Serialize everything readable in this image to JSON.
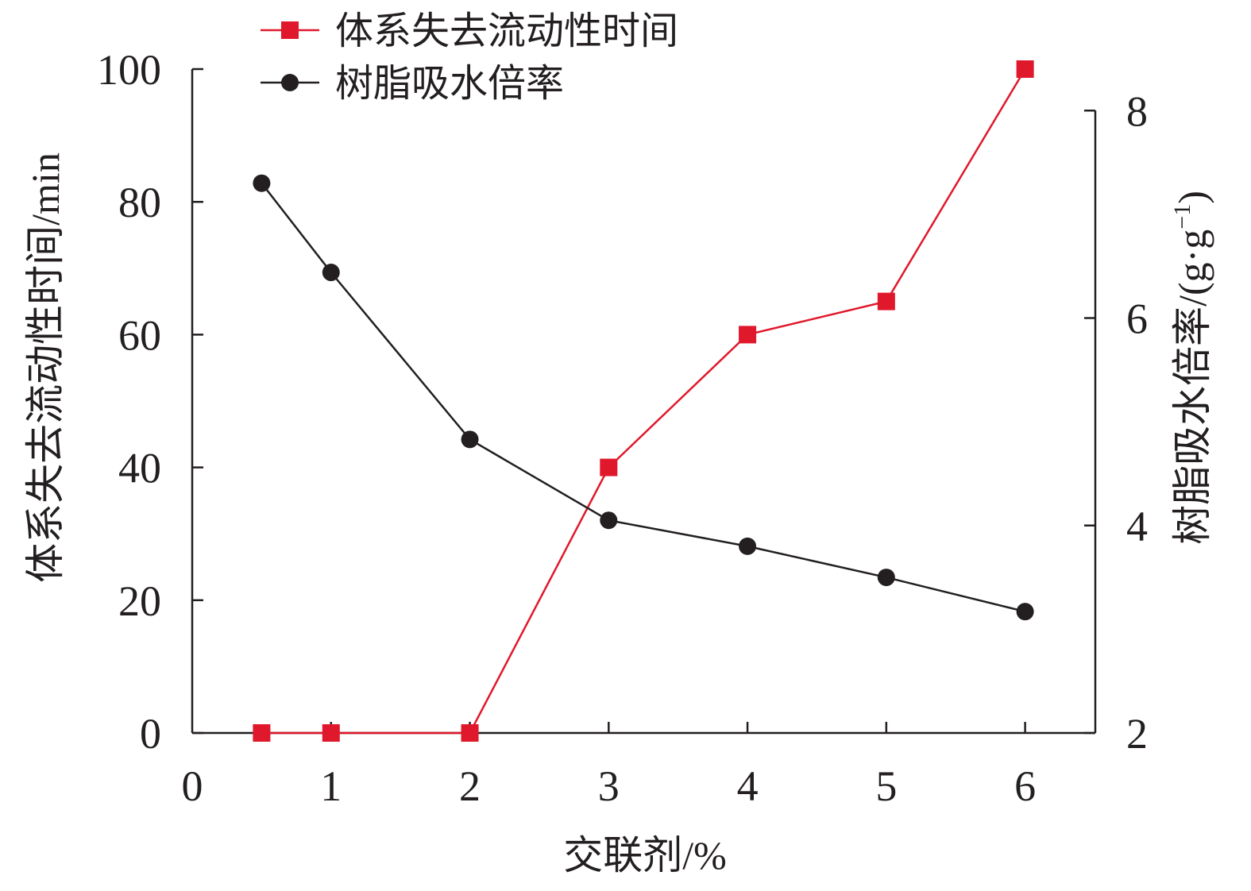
{
  "chart_data": {
    "type": "line",
    "xlabel": "交联剂/%",
    "ylabel_left": "体系失去流动性时间/min",
    "ylabel_right_main": "树脂吸水倍率/(g·g",
    "ylabel_right_sup": "−1",
    "ylabel_right_close": ")",
    "xlim": [
      0,
      6.5
    ],
    "x_ticks": [
      0,
      1,
      2,
      3,
      4,
      5,
      6
    ],
    "y_left_lim": [
      0,
      100
    ],
    "y_left_ticks": [
      0,
      20,
      40,
      60,
      80,
      100
    ],
    "y_right_lim": [
      2,
      8.4
    ],
    "y_right_ticks": [
      2,
      4,
      6,
      8
    ],
    "legend_position": "top-center",
    "grid": false,
    "series": [
      {
        "name": "体系失去流动性时间",
        "axis": "left",
        "marker": "square",
        "color": "#e0182b",
        "x": [
          0.5,
          1,
          2,
          3,
          4,
          5,
          6
        ],
        "values": [
          0,
          0,
          0,
          40,
          60,
          65,
          100
        ]
      },
      {
        "name": "树脂吸水倍率",
        "axis": "right",
        "marker": "circle",
        "color": "#231f20",
        "x": [
          0.5,
          1,
          2,
          3,
          4,
          5,
          6
        ],
        "values": [
          7.3,
          6.44,
          4.83,
          4.05,
          3.8,
          3.5,
          3.17
        ]
      }
    ]
  }
}
